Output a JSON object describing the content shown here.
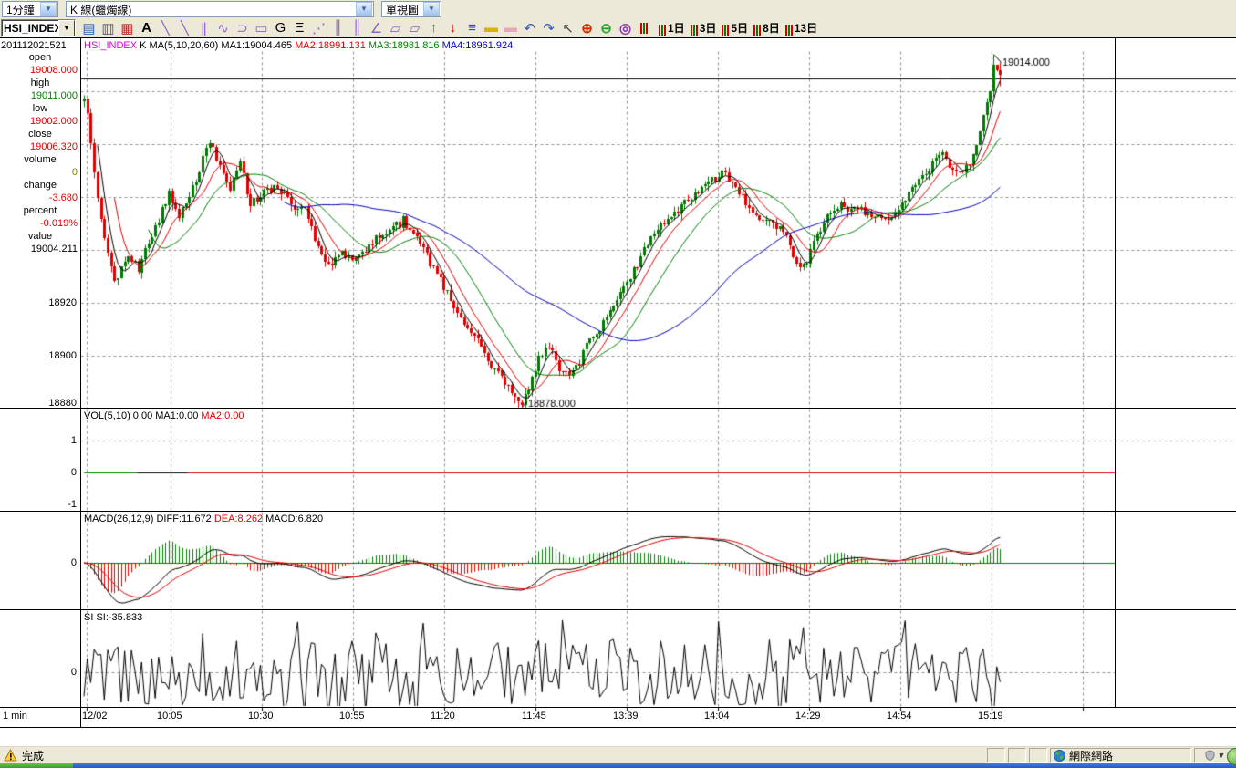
{
  "toolbar_row1": {
    "period_combo": {
      "value": "1分鐘"
    },
    "chart_type_combo": {
      "value": "K 線(蠟燭線)"
    },
    "view_combo": {
      "value": "單視圖"
    }
  },
  "toolbar_row2": {
    "symbol_combo": {
      "value": "HSI_INDEX"
    },
    "icons": [
      {
        "name": "save",
        "glyph": "▤",
        "color": "#2f5bb7"
      },
      {
        "name": "print",
        "glyph": "▥",
        "color": "#555577"
      },
      {
        "name": "palette",
        "glyph": "▦",
        "color": "#b03030"
      },
      {
        "name": "text-tool",
        "glyph": "A",
        "color": "#000000",
        "bold": true
      },
      {
        "name": "trendline-tool",
        "glyph": "╲",
        "color": "#8a62c9"
      },
      {
        "name": "segment-tool",
        "glyph": "╲",
        "color": "#8a62c9"
      },
      {
        "name": "parallel-lines-tool",
        "glyph": "∥",
        "color": "#8a62c9"
      },
      {
        "name": "curve-tool",
        "glyph": "∿",
        "color": "#8a62c9"
      },
      {
        "name": "arc-tool",
        "glyph": "⊃",
        "color": "#8a62c9"
      },
      {
        "name": "rectangle-tool",
        "glyph": "▭",
        "color": "#8a62c9"
      },
      {
        "name": "golden-section-tool",
        "glyph": "G",
        "color": "#000000"
      },
      {
        "name": "percent-lines-tool",
        "glyph": "Ξ",
        "color": "#000000"
      },
      {
        "name": "gann-fan-tool",
        "glyph": "⋰",
        "color": "#8a62c9"
      },
      {
        "name": "vertical-lines-tool",
        "glyph": "║",
        "color": "#8a62c9"
      },
      {
        "name": "time-division-tool",
        "glyph": "║",
        "color": "#8a62c9"
      },
      {
        "name": "angle-tool",
        "glyph": "∠",
        "color": "#8a62c9"
      },
      {
        "name": "channel-tool",
        "glyph": "▱",
        "color": "#8a62c9"
      },
      {
        "name": "regression-tool",
        "glyph": "▱",
        "color": "#8a62c9"
      },
      {
        "name": "arrow-up-mark",
        "glyph": "↑",
        "color": "#00a000",
        "bold": true
      },
      {
        "name": "arrow-down-mark",
        "glyph": "↓",
        "color": "#d00000",
        "bold": true
      },
      {
        "name": "horizontal-lines-tool",
        "glyph": "≡",
        "color": "#3848c8"
      },
      {
        "name": "eraser-tool",
        "glyph": "▬",
        "color": "#d8b400"
      },
      {
        "name": "clear-all-tool",
        "glyph": "▬",
        "color": "#e8a8b8"
      },
      {
        "name": "undo",
        "glyph": "↶",
        "color": "#3858b8"
      },
      {
        "name": "redo",
        "glyph": "↷",
        "color": "#3858b8"
      },
      {
        "name": "pointer-tool",
        "glyph": "↖",
        "color": "#404040"
      },
      {
        "name": "zoom-in",
        "glyph": "⊕",
        "color": "#d03000",
        "bold": true
      },
      {
        "name": "zoom-out",
        "glyph": "⊖",
        "color": "#30a030",
        "bold": true
      },
      {
        "name": "zoom-fit",
        "glyph": "◎",
        "color": "#9030b0",
        "bold": true
      },
      {
        "name": "pattern-tool",
        "kind": "chip"
      }
    ],
    "day_buttons": [
      "1日",
      "3日",
      "5日",
      "8日",
      "13日"
    ]
  },
  "sidebar": {
    "timestamp": "201112021521",
    "fields": [
      {
        "label": "open",
        "value": "19008.000",
        "color": "#e00000"
      },
      {
        "label": "high",
        "value": "19011.000",
        "color": "#008000"
      },
      {
        "label": "low",
        "value": "19002.000",
        "color": "#e00000"
      },
      {
        "label": "close",
        "value": "19006.320",
        "color": "#e00000"
      },
      {
        "label": "volume",
        "value": "0",
        "color": "#808000"
      },
      {
        "label": "change",
        "value": "-3.680",
        "color": "#e00000"
      },
      {
        "label": "percent",
        "value": "-0.019%",
        "color": "#e00000"
      },
      {
        "label": "value",
        "value": "19004.211",
        "color": "#000000"
      }
    ],
    "interval_label": "1 min"
  },
  "panels": {
    "main": {
      "header": [
        {
          "text": "HSI_INDEX",
          "color": "#d800d8"
        },
        {
          "text": " K MA(5,10,20,60) MA1:19004.465 ",
          "color": "#000000"
        },
        {
          "text": "MA2:18991.131 ",
          "color": "#e00000"
        },
        {
          "text": "MA3:18981.816 ",
          "color": "#008000"
        },
        {
          "text": "MA4:18961.924",
          "color": "#0000d0"
        }
      ],
      "y_ticks": [
        "18920",
        "18900",
        "18880"
      ]
    },
    "vol": {
      "header": [
        {
          "text": "VOL(5,10) 0.00 MA1:0.00 ",
          "color": "#000000"
        },
        {
          "text": "MA2:0.00",
          "color": "#e00000"
        }
      ],
      "y_ticks": [
        "1",
        "0",
        "-1"
      ]
    },
    "macd": {
      "header": [
        {
          "text": "MACD(26,12,9) DIFF:11.672 ",
          "color": "#000000"
        },
        {
          "text": "DEA:8.262 ",
          "color": "#e00000"
        },
        {
          "text": "MACD:6.820",
          "color": "#000000"
        }
      ],
      "y_ticks": [
        "0"
      ]
    },
    "si": {
      "header": [
        {
          "text": "SI SI:-35.833",
          "color": "#000000"
        }
      ],
      "y_ticks": [
        "0"
      ]
    }
  },
  "time_axis": {
    "ticks": [
      "12/02",
      "10:05",
      "10:30",
      "10:55",
      "11:20",
      "11:45",
      "13:39",
      "14:04",
      "14:29",
      "14:54",
      "15:19"
    ]
  },
  "status_bar": {
    "status": "完成",
    "zone": "網際網路"
  },
  "chart_data": [
    {
      "type": "candlestick",
      "symbol": "HSI_INDEX",
      "interval": "1 min",
      "date": "2011-12-02",
      "bar_count": 271,
      "up_color": "#007a00",
      "down_color": "#e00000",
      "ma_params": [
        5,
        10,
        20,
        60
      ],
      "ma_colors": {
        "MA1": "#000000",
        "MA2": "#e00000",
        "MA3": "#008000",
        "MA4": "#0000b8"
      },
      "ma_values": {
        "MA1": 19004.465,
        "MA2": 18991.131,
        "MA3": 18981.816,
        "MA4": 18961.924
      },
      "last_bar": {
        "open": 19008.0,
        "high": 19011.0,
        "low": 19002.0,
        "close": 19006.32,
        "volume": 0,
        "change": -3.68,
        "percent": "-0.019%",
        "value": 19004.211
      },
      "annotations": [
        {
          "text": "19014.000",
          "kind": "session-high",
          "bar_index": 268
        },
        {
          "text": "18878.000",
          "kind": "session-low",
          "bar_index": 129
        }
      ],
      "ylim": [
        18874,
        19018
      ],
      "y_ticks": [
        19000,
        18980,
        18960,
        18940,
        18920,
        18900,
        18880
      ],
      "x_ticks": [
        "12/02",
        "10:05",
        "10:30",
        "10:55",
        "11:20",
        "11:45",
        "13:39",
        "14:04",
        "14:29",
        "14:54",
        "15:19"
      ],
      "grid": true,
      "last_value_line": 19004.211,
      "price_path": [
        [
          0,
          18996
        ],
        [
          1,
          18993
        ],
        [
          3,
          18970
        ],
        [
          5,
          18950
        ],
        [
          9,
          18928
        ],
        [
          13,
          18938
        ],
        [
          16,
          18933
        ],
        [
          20,
          18945
        ],
        [
          25,
          18962
        ],
        [
          28,
          18952
        ],
        [
          33,
          18966
        ],
        [
          37,
          18982
        ],
        [
          40,
          18972
        ],
        [
          43,
          18964
        ],
        [
          46,
          18972
        ],
        [
          49,
          18958
        ],
        [
          53,
          18962
        ],
        [
          57,
          18964
        ],
        [
          61,
          18957
        ],
        [
          65,
          18955
        ],
        [
          69,
          18940
        ],
        [
          72,
          18934
        ],
        [
          75,
          18939
        ],
        [
          79,
          18937
        ],
        [
          82,
          18939
        ],
        [
          86,
          18944
        ],
        [
          90,
          18947
        ],
        [
          94,
          18951
        ],
        [
          97,
          18946
        ],
        [
          100,
          18940
        ],
        [
          104,
          18931
        ],
        [
          108,
          18922
        ],
        [
          112,
          18912
        ],
        [
          116,
          18905
        ],
        [
          119,
          18898
        ],
        [
          123,
          18892
        ],
        [
          125,
          18889
        ],
        [
          129,
          18881
        ],
        [
          131,
          18887
        ],
        [
          134,
          18899
        ],
        [
          137,
          18903
        ],
        [
          140,
          18895
        ],
        [
          143,
          18891
        ],
        [
          146,
          18898
        ],
        [
          149,
          18907
        ],
        [
          153,
          18912
        ],
        [
          156,
          18920
        ],
        [
          161,
          18930
        ],
        [
          165,
          18940
        ],
        [
          168,
          18946
        ],
        [
          172,
          18952
        ],
        [
          176,
          18956
        ],
        [
          180,
          18962
        ],
        [
          184,
          18966
        ],
        [
          188,
          18969
        ],
        [
          192,
          18964
        ],
        [
          195,
          18958
        ],
        [
          199,
          18951
        ],
        [
          203,
          18950
        ],
        [
          207,
          18945
        ],
        [
          210,
          18935
        ],
        [
          212,
          18933
        ],
        [
          216,
          18945
        ],
        [
          219,
          18952
        ],
        [
          223,
          18957
        ],
        [
          227,
          18955
        ],
        [
          231,
          18954
        ],
        [
          235,
          18953
        ],
        [
          238,
          18952
        ],
        [
          242,
          18958
        ],
        [
          245,
          18966
        ],
        [
          249,
          18971
        ],
        [
          252,
          18977
        ],
        [
          255,
          18972
        ],
        [
          258,
          18970
        ],
        [
          261,
          18973
        ],
        [
          263,
          18981
        ],
        [
          265,
          18990
        ],
        [
          267,
          19000
        ],
        [
          268,
          19010
        ],
        [
          269,
          19009
        ],
        [
          270,
          19006.32
        ]
      ]
    },
    {
      "type": "line",
      "name": "VOL",
      "params": "(5,10)",
      "current": 0.0,
      "ma1": 0.0,
      "ma2": 0.0,
      "values_all_zero": true,
      "ylim": [
        -1,
        1
      ],
      "y_ticks": [
        1,
        0,
        -1
      ],
      "zero_line_colors": [
        "#008000",
        "#000000",
        "#e00000"
      ]
    },
    {
      "type": "macd",
      "params": "(26,12,9)",
      "diff": 11.672,
      "dea": 8.262,
      "macd": 6.82,
      "y_ticks": [
        0
      ],
      "derived": "DIFF/DEA/histogram computed as EMA(12)-EMA(26) and EMA(9) of DIFF over the candlestick closes above",
      "hist_up_color": "#008000",
      "hist_down_color": "#e00000",
      "diff_color": "#000000",
      "dea_color": "#e00000",
      "zero_line_color": "#008000"
    },
    {
      "type": "line",
      "name": "SI",
      "current": -35.833,
      "y_ticks": [
        0
      ],
      "pattern": "dense high-frequency oscillation around 0, approx range -170..170",
      "line_color": "#000000"
    }
  ]
}
